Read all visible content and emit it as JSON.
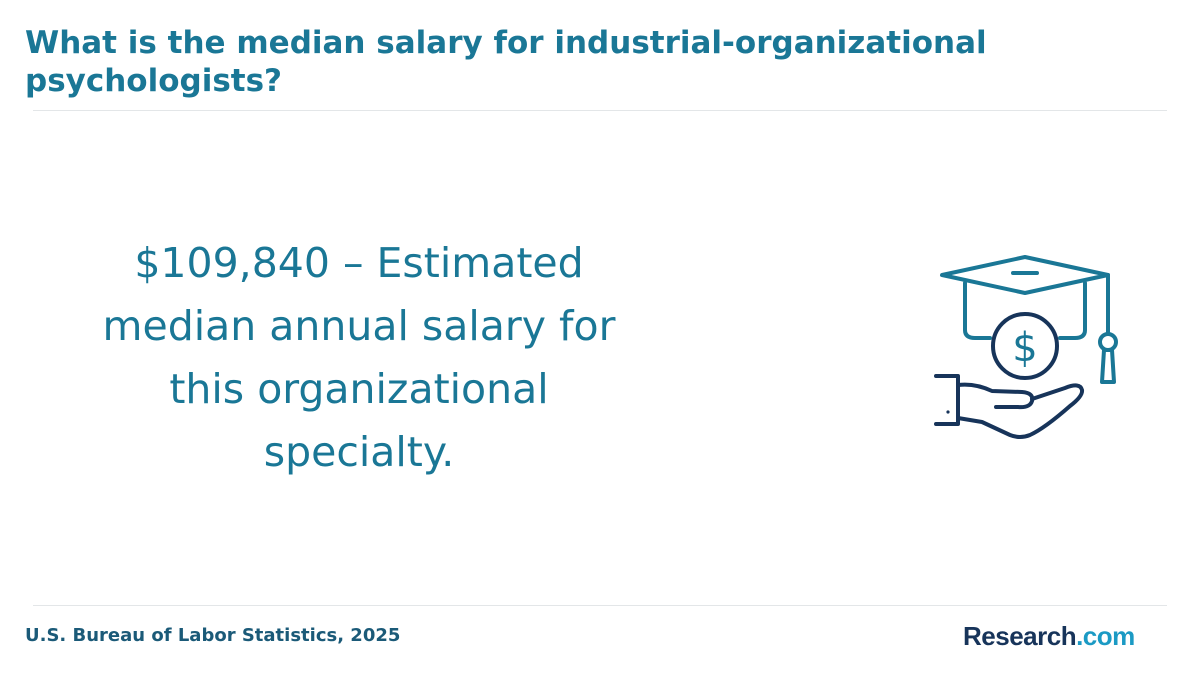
{
  "header": {
    "title": "What is the median salary for industrial-organizational psychologists?"
  },
  "main": {
    "statement": "$109,840 – Estimated median annual salary for this organizational specialty.",
    "illustration_icon": "graduation-cap-coin-hand-icon"
  },
  "footer": {
    "source": "U.S. Bureau of Labor Statistics, 2025",
    "brand_name": "Research",
    "brand_tld": ".com"
  },
  "colors": {
    "accent": "#1a7796",
    "navy": "#17345a",
    "brand_blue": "#1b9ac4"
  }
}
